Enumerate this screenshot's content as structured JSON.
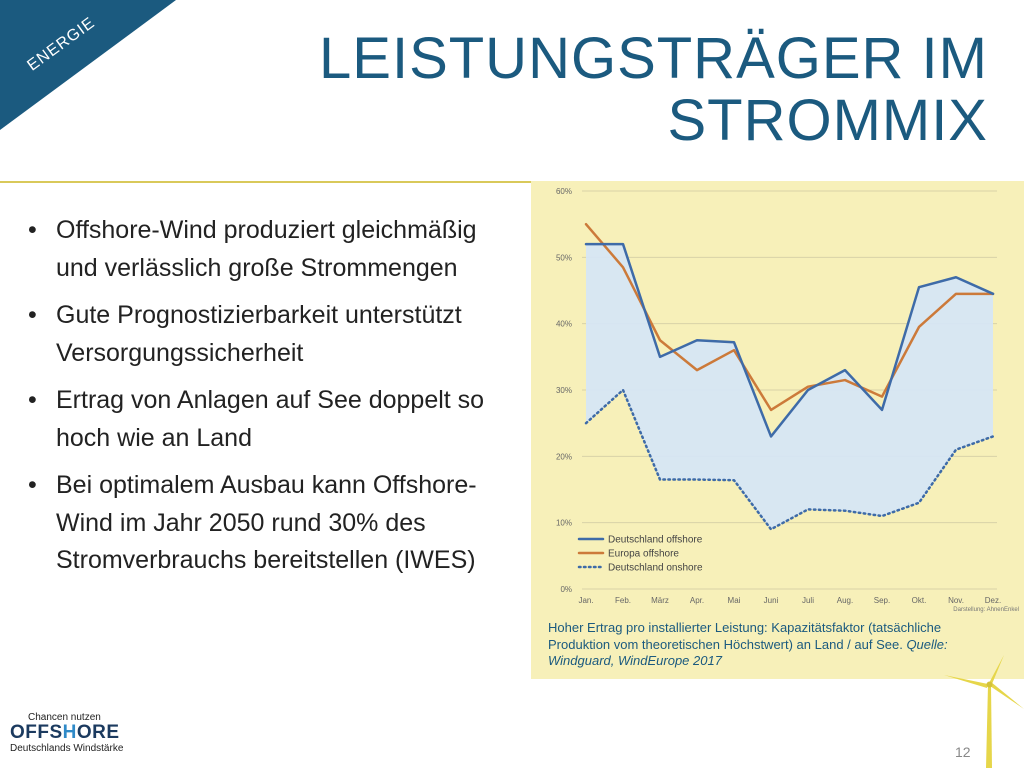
{
  "section_label": "ENERGIE",
  "title_line1": "LEISTUNGSTRÄGER IM",
  "title_line2": "STROMMIX",
  "bullets": [
    "Offshore-Wind produziert gleichmäßig und verlässlich große Strommengen",
    "Gute Prognostizierbarkeit unterstützt Versorgungssicherheit",
    "Ertrag von Anlagen auf See doppelt so hoch wie an Land",
    "Bei optimalem Ausbau kann Offshore-Wind im Jahr 2050 rund 30% des Stromverbrauchs bereitstellen (IWES)"
  ],
  "caption": {
    "text": "Hoher Ertrag pro installierter Leistung: Kapazitätsfaktor (tatsächliche Produktion vom theoretischen Höchstwert) an Land / auf See.",
    "source": "Quelle: Windguard, WindEurope 2017"
  },
  "logo": {
    "top": "Chancen nutzen",
    "main_a": "OFFS",
    "main_b": "H",
    "main_c": "ORE",
    "sub": "Deutschlands Windstärke"
  },
  "page_number": "12",
  "colors": {
    "brand": "#1b5a7f",
    "chart_bg": "#f7f0b9",
    "fill": "#d6e6f4",
    "de_offshore": "#3e6ba8",
    "eu_offshore": "#cc7a3a",
    "de_onshore": "#3e6ba8"
  },
  "chart_data": {
    "type": "line",
    "categories": [
      "Jan.",
      "Feb.",
      "März",
      "Apr.",
      "Mai",
      "Juni",
      "Juli",
      "Aug.",
      "Sep.",
      "Okt.",
      "Nov.",
      "Dez."
    ],
    "series": [
      {
        "name": "Deutschland offshore",
        "values": [
          52,
          52,
          35,
          37.5,
          37.2,
          23,
          30,
          33,
          27,
          45.5,
          47,
          44.5
        ]
      },
      {
        "name": "Europa offshore",
        "values": [
          55,
          48.5,
          37.5,
          33,
          36,
          27,
          30.5,
          31.5,
          29,
          39.5,
          44.5,
          44.5
        ]
      },
      {
        "name": "Deutschland onshore",
        "values": [
          25,
          30,
          16.5,
          16.5,
          16.4,
          9,
          12,
          11.8,
          11,
          13,
          21,
          23
        ]
      }
    ],
    "yticks": [
      "0%",
      "10%",
      "20%",
      "30%",
      "40%",
      "50%",
      "60%"
    ],
    "ylim": [
      0,
      60
    ],
    "grid": true,
    "legend_position": "bottom-left",
    "note": "Darstellung: AhnenEnkel"
  }
}
